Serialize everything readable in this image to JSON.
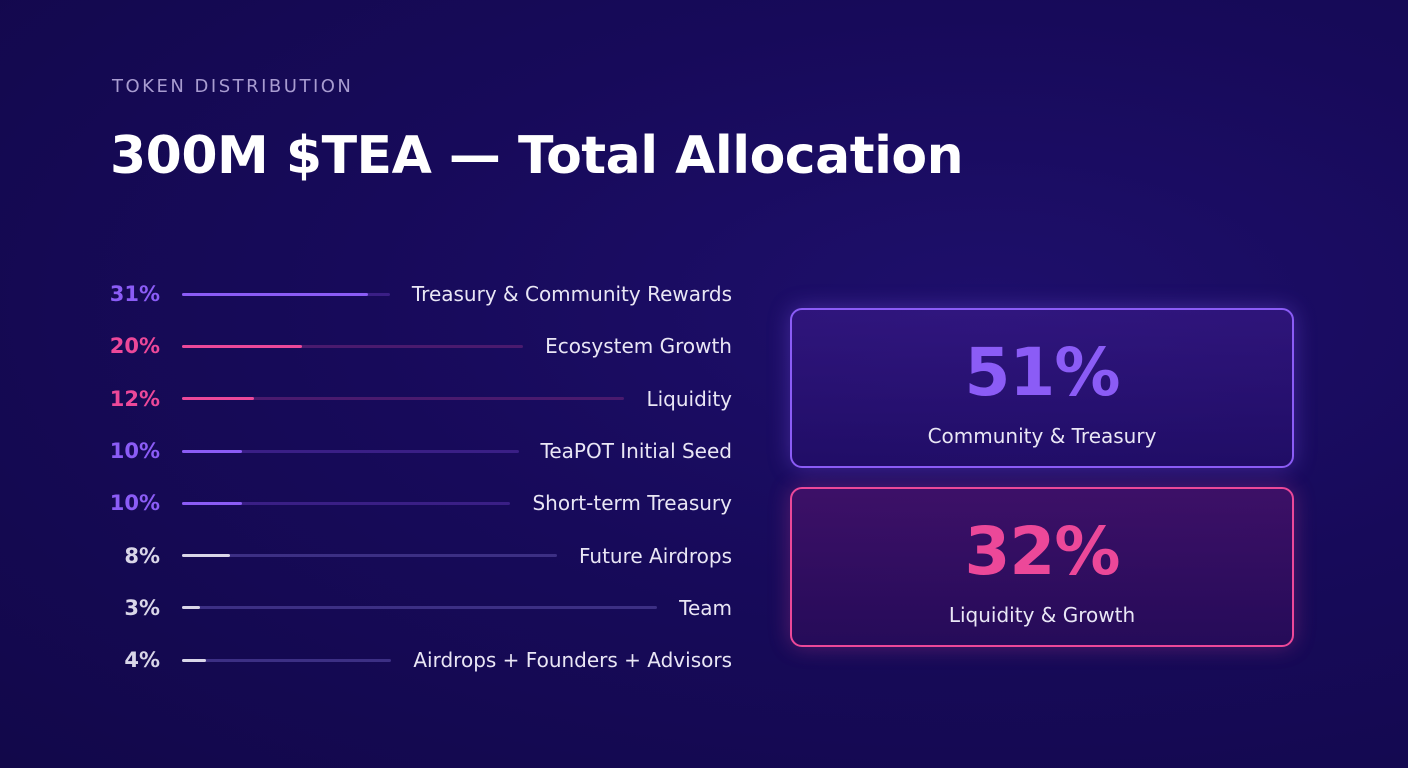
{
  "header": {
    "eyebrow": "TOKEN DISTRIBUTION",
    "title": "300M $TEA — Total Allocation"
  },
  "chart_data": {
    "type": "bar",
    "orientation": "horizontal",
    "title": "300M $TEA — Total Allocation",
    "unit": "%",
    "rows": [
      {
        "label": "Treasury & Community Rewards",
        "value": 31,
        "value_text": "31%",
        "group": "community"
      },
      {
        "label": "Ecosystem Growth",
        "value": 20,
        "value_text": "20%",
        "group": "growth"
      },
      {
        "label": "Liquidity",
        "value": 12,
        "value_text": "12%",
        "group": "growth"
      },
      {
        "label": "TeaPOT Initial Seed",
        "value": 10,
        "value_text": "10%",
        "group": "community"
      },
      {
        "label": "Short-term Treasury",
        "value": 10,
        "value_text": "10%",
        "group": "community"
      },
      {
        "label": "Future Airdrops",
        "value": 8,
        "value_text": "8%",
        "group": "other"
      },
      {
        "label": "Team",
        "value": 3,
        "value_text": "3%",
        "group": "other"
      },
      {
        "label": "Airdrops + Founders + Advisors",
        "value": 4,
        "value_text": "4%",
        "group": "other"
      }
    ],
    "value_scale_max": 31
  },
  "summary_cards": [
    {
      "value": "51%",
      "label": "Community & Treasury"
    },
    {
      "value": "32%",
      "label": "Liquidity & Growth"
    }
  ],
  "colors": {
    "background": "#170a5a",
    "community": "#8b5cf6",
    "growth": "#ec4899",
    "other": "#d9d6e8",
    "track_community": "#3a1f86",
    "track_growth": "#4a1a6e",
    "track_other": "#3c2f84"
  }
}
